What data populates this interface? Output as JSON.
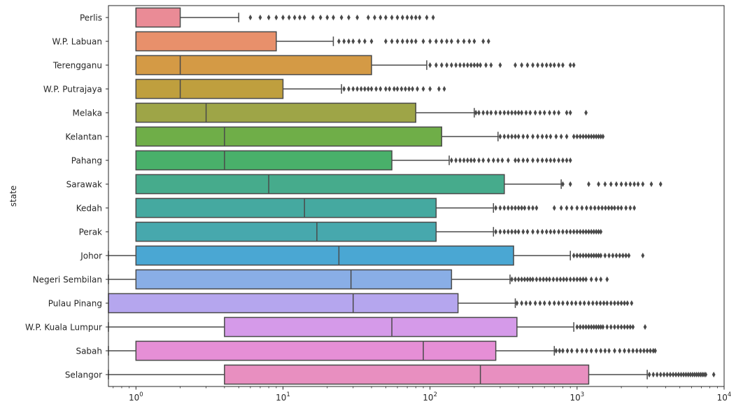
{
  "chart_data": {
    "type": "box",
    "orientation": "horizontal",
    "ylabel": "state",
    "xlabel": "",
    "xscale": "log",
    "xlim": [
      0.65,
      10000
    ],
    "x_ticks": [
      {
        "value": 1,
        "base": "10",
        "exp": "0"
      },
      {
        "value": 10,
        "base": "10",
        "exp": "1"
      },
      {
        "value": 100,
        "base": "10",
        "exp": "2"
      },
      {
        "value": 1000,
        "base": "10",
        "exp": "3"
      },
      {
        "value": 10000,
        "base": "10",
        "exp": "4"
      }
    ],
    "grid": false,
    "legend": "none",
    "boxes": [
      {
        "state": "Perlis",
        "color": "#ea8b96",
        "whislo": 1,
        "q1": 1,
        "median": 1,
        "q3": 2,
        "whishi": 5,
        "fliers": [
          6,
          7,
          8,
          9,
          10,
          11,
          12,
          13,
          14,
          16,
          18,
          20,
          22,
          25,
          28,
          32,
          38,
          42,
          46,
          50,
          55,
          60,
          65,
          70,
          75,
          80,
          85,
          95,
          105
        ]
      },
      {
        "state": "W.P. Labuan",
        "color": "#e8906b",
        "whislo": 1,
        "q1": 1,
        "median": 1,
        "q3": 9,
        "whishi": 22,
        "fliers": [
          24,
          26,
          28,
          30,
          33,
          36,
          40,
          50,
          55,
          60,
          65,
          70,
          75,
          80,
          90,
          100,
          110,
          120,
          130,
          140,
          155,
          170,
          185,
          200,
          230,
          250
        ]
      },
      {
        "state": "Terengganu",
        "color": "#d49a45",
        "whislo": 1,
        "q1": 1,
        "median": 2,
        "q3": 40,
        "whishi": 95,
        "fliers": [
          100,
          110,
          120,
          130,
          140,
          150,
          160,
          170,
          180,
          190,
          200,
          210,
          220,
          240,
          260,
          300,
          380,
          420,
          460,
          500,
          540,
          580,
          620,
          660,
          700,
          750,
          800,
          900,
          950
        ]
      },
      {
        "state": "W.P. Putrajaya",
        "color": "#bf9f3e",
        "whislo": 1,
        "q1": 1,
        "median": 2,
        "q3": 10,
        "whishi": 25,
        "fliers": [
          26,
          28,
          30,
          32,
          34,
          36,
          38,
          40,
          43,
          46,
          50,
          53,
          57,
          60,
          64,
          68,
          72,
          76,
          82,
          90,
          100,
          115,
          125
        ]
      },
      {
        "state": "Melaka",
        "color": "#9ea547",
        "whislo": 1,
        "q1": 1,
        "median": 3,
        "q3": 80,
        "whishi": 200,
        "fliers": [
          205,
          215,
          230,
          245,
          260,
          280,
          300,
          320,
          340,
          360,
          380,
          400,
          420,
          450,
          480,
          520,
          560,
          600,
          650,
          700,
          750,
          850,
          900,
          1150
        ]
      },
      {
        "state": "Kelantan",
        "color": "#6fae48",
        "whislo": 1,
        "q1": 1,
        "median": 4,
        "q3": 120,
        "whishi": 290,
        "fliers": [
          300,
          320,
          340,
          360,
          380,
          400,
          430,
          460,
          500,
          540,
          580,
          620,
          660,
          720,
          780,
          850,
          950,
          1000,
          1050,
          1100,
          1150,
          1200,
          1250,
          1300,
          1350,
          1400,
          1450,
          1500
        ]
      },
      {
        "state": "Pahang",
        "color": "#49b06a",
        "whislo": 1,
        "q1": 1,
        "median": 4,
        "q3": 55,
        "whishi": 135,
        "fliers": [
          140,
          150,
          160,
          170,
          180,
          190,
          200,
          215,
          230,
          250,
          270,
          290,
          310,
          340,
          380,
          400,
          430,
          460,
          500,
          540,
          580,
          620,
          660,
          700,
          750,
          800,
          850,
          900
        ]
      },
      {
        "state": "Sarawak",
        "color": "#46ab8c",
        "whislo": 1,
        "q1": 1,
        "median": 8,
        "q3": 320,
        "whishi": 780,
        "fliers": [
          800,
          900,
          1200,
          1400,
          1550,
          1700,
          1850,
          2000,
          2150,
          2300,
          2450,
          2600,
          2800,
          3200,
          3700
        ]
      },
      {
        "state": "Kedah",
        "color": "#45a9a0",
        "whislo": 1,
        "q1": 1,
        "median": 14,
        "q3": 110,
        "whishi": 270,
        "fliers": [
          280,
          300,
          320,
          340,
          360,
          380,
          400,
          420,
          440,
          470,
          500,
          530,
          700,
          780,
          850,
          920,
          1000,
          1080,
          1160,
          1240,
          1320,
          1400,
          1480,
          1560,
          1640,
          1720,
          1800,
          1900,
          2000,
          2150,
          2300,
          2450
        ]
      },
      {
        "state": "Perak",
        "color": "#47a8ad",
        "whislo": 1,
        "q1": 1,
        "median": 17,
        "q3": 110,
        "whishi": 270,
        "fliers": [
          280,
          300,
          320,
          340,
          360,
          380,
          400,
          430,
          460,
          500,
          540,
          580,
          620,
          660,
          700,
          750,
          800,
          850,
          900,
          950,
          1000,
          1050,
          1100,
          1150,
          1200,
          1250,
          1300,
          1350,
          1400,
          1450
        ]
      },
      {
        "state": "Johor",
        "color": "#4aa7d3",
        "whislo": 0.65,
        "q1": 1,
        "median": 24,
        "q3": 370,
        "whishi": 900,
        "fliers": [
          950,
          1000,
          1050,
          1100,
          1150,
          1200,
          1250,
          1300,
          1350,
          1400,
          1450,
          1550,
          1650,
          1750,
          1850,
          1950,
          2050,
          2150,
          2250,
          2800
        ]
      },
      {
        "state": "Negeri Sembilan",
        "color": "#89aee6",
        "whislo": 0.65,
        "q1": 1,
        "median": 29,
        "q3": 140,
        "whishi": 350,
        "fliers": [
          360,
          380,
          400,
          420,
          440,
          460,
          480,
          500,
          530,
          560,
          590,
          620,
          650,
          690,
          730,
          770,
          810,
          850,
          900,
          950,
          1000,
          1050,
          1100,
          1150,
          1250,
          1350,
          1450,
          1600
        ]
      },
      {
        "state": "Pulau Pinang",
        "color": "#b5a6ee",
        "whislo": 0.65,
        "q1": 0.65,
        "median": 30,
        "q3": 155,
        "whishi": 380,
        "fliers": [
          390,
          420,
          450,
          480,
          520,
          560,
          600,
          650,
          700,
          750,
          800,
          860,
          920,
          980,
          1050,
          1120,
          1200,
          1280,
          1360,
          1440,
          1520,
          1600,
          1700,
          1800,
          1900,
          2000,
          2100,
          2200,
          2350
        ]
      },
      {
        "state": "W.P. Kuala Lumpur",
        "color": "#d59ae9",
        "whislo": 0.65,
        "q1": 4,
        "median": 55,
        "q3": 390,
        "whishi": 950,
        "fliers": [
          1000,
          1050,
          1100,
          1150,
          1200,
          1250,
          1300,
          1350,
          1400,
          1450,
          1500,
          1600,
          1700,
          1800,
          1900,
          2000,
          2100,
          2200,
          2300,
          2400,
          2900
        ]
      },
      {
        "state": "Sabah",
        "color": "#e68fd6",
        "whislo": 0.65,
        "q1": 1,
        "median": 90,
        "q3": 280,
        "whishi": 700,
        "fliers": [
          720,
          760,
          800,
          860,
          920,
          1000,
          1080,
          1160,
          1250,
          1350,
          1450,
          1550,
          1650,
          1800,
          1950,
          2100,
          2250,
          2400,
          2550,
          2700,
          2850,
          3000,
          3150,
          3300,
          3400
        ]
      },
      {
        "state": "Selangor",
        "color": "#e88fc0",
        "whislo": 0.65,
        "q1": 4,
        "median": 220,
        "q3": 1200,
        "whishi": 3000,
        "fliers": [
          3100,
          3300,
          3500,
          3700,
          3900,
          4100,
          4300,
          4500,
          4700,
          4900,
          5100,
          5300,
          5500,
          5700,
          5900,
          6100,
          6300,
          6500,
          6700,
          6900,
          7100,
          7300,
          7500,
          8500
        ]
      }
    ]
  }
}
